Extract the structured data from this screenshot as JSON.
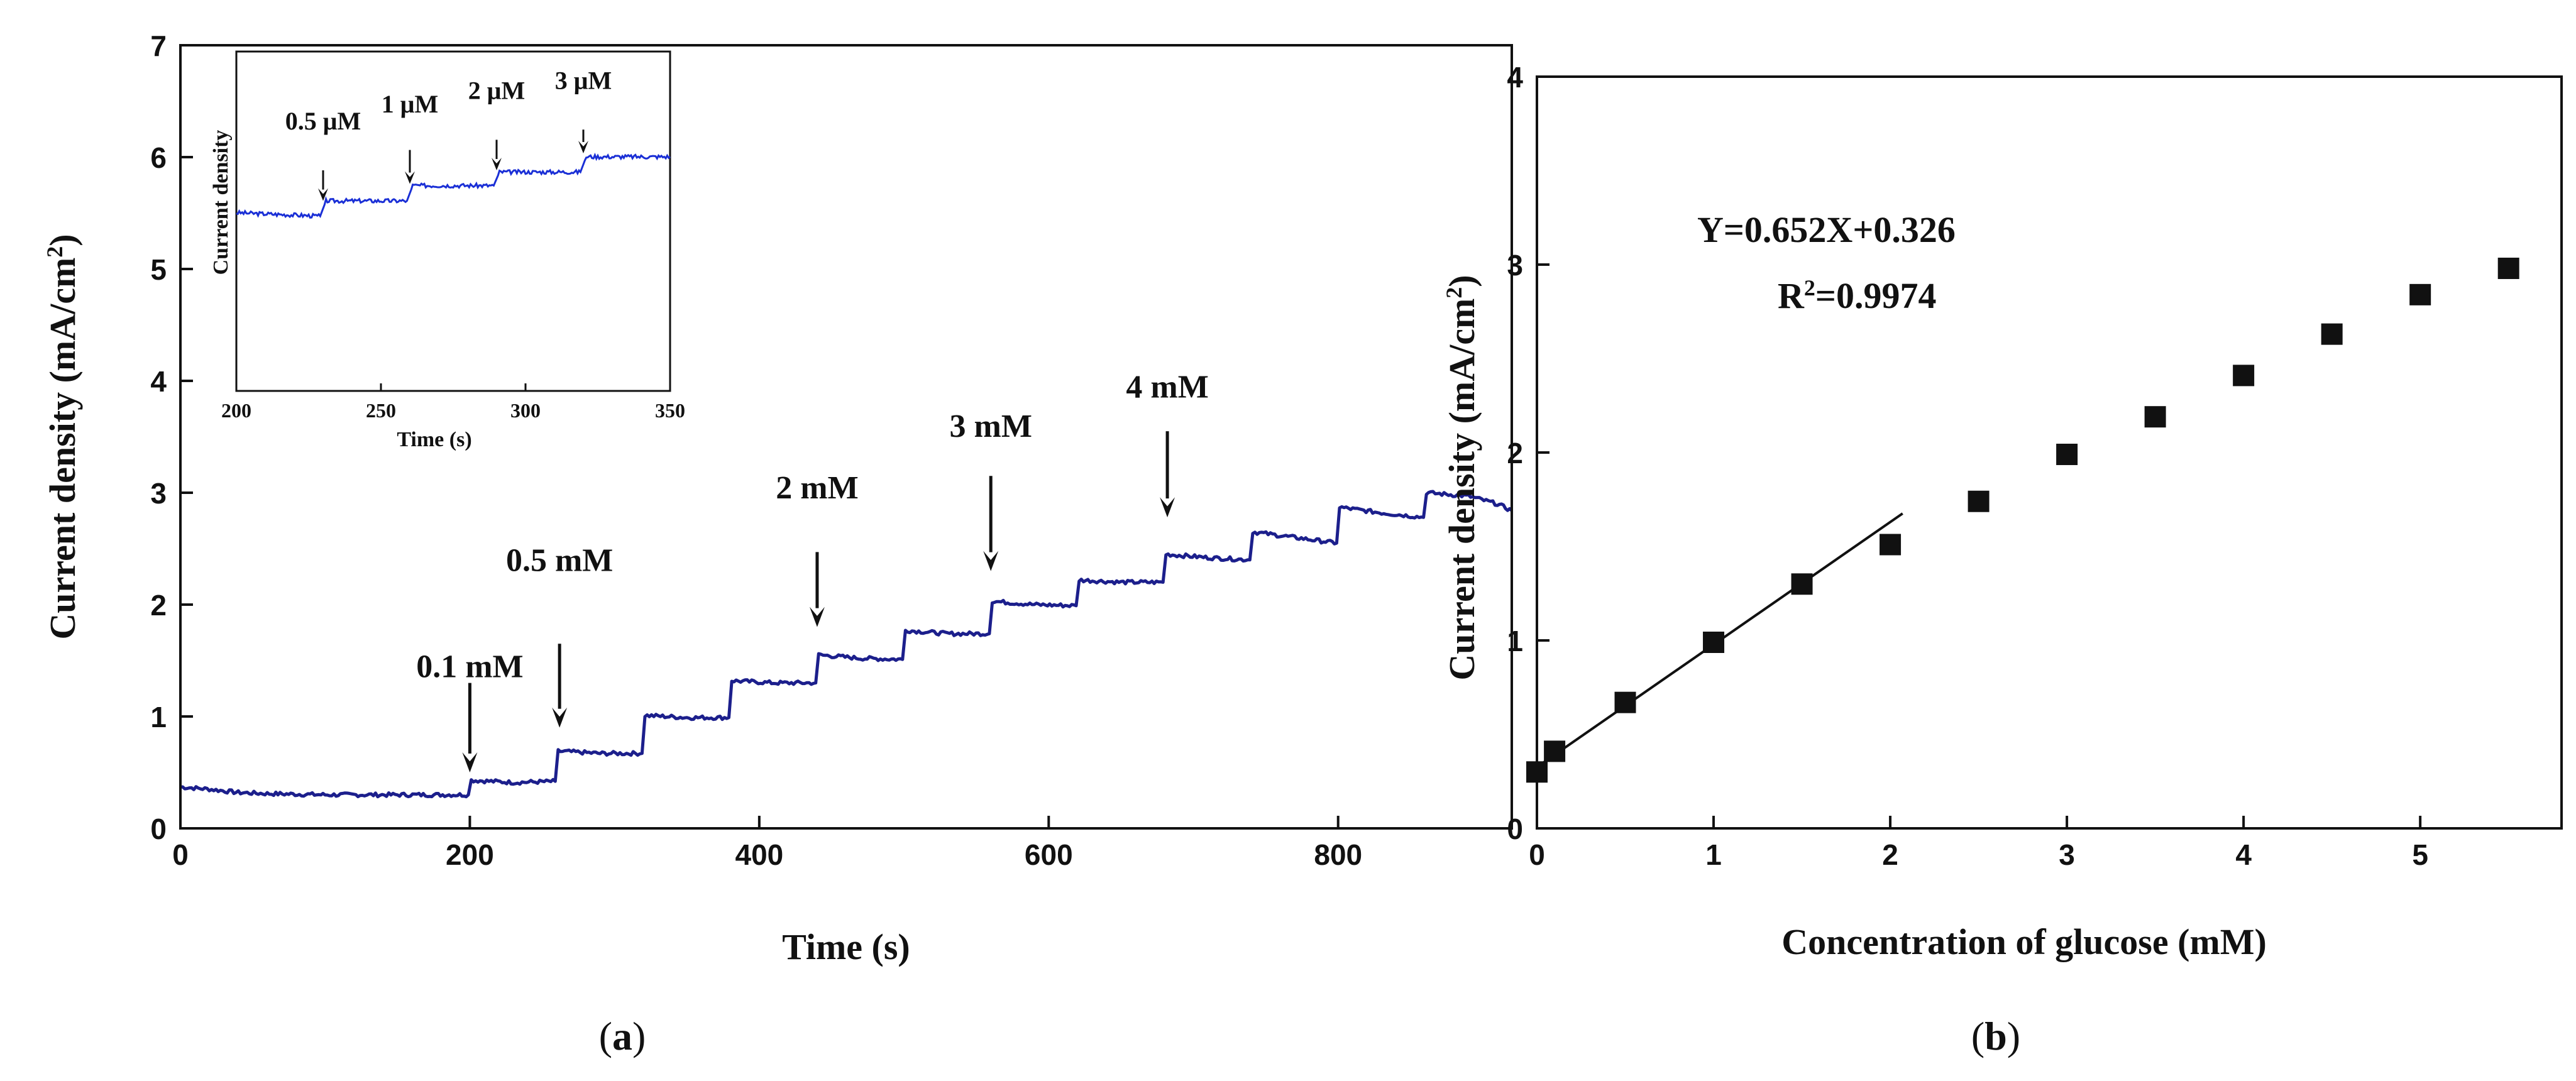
{
  "chart_data": [
    {
      "id": "a",
      "type": "line",
      "panel_label": "a",
      "xlabel": "Time (s)",
      "ylabel": "Current density (mA/cm",
      "ylabel_sup": "2",
      "ylabel_end": ")",
      "xlim": [
        0,
        920
      ],
      "ylim": [
        0,
        7
      ],
      "xticks": [
        0,
        200,
        400,
        600,
        800
      ],
      "yticks": [
        0,
        1,
        2,
        3,
        4,
        5,
        6,
        7
      ],
      "color": "#1c1f8c",
      "series": [
        {
          "name": "amperometric response",
          "x": [
            0,
            20,
            40,
            60,
            100,
            150,
            199,
            201,
            230,
            259,
            261,
            290,
            319,
            321,
            350,
            379,
            381,
            410,
            439,
            441,
            470,
            499,
            501,
            530,
            559,
            561,
            590,
            619,
            621,
            650,
            679,
            681,
            710,
            739,
            741,
            770,
            799,
            801,
            830,
            859,
            861,
            890,
            910,
            920
          ],
          "y": [
            0.37,
            0.35,
            0.32,
            0.31,
            0.3,
            0.3,
            0.3,
            0.43,
            0.41,
            0.42,
            0.69,
            0.67,
            0.67,
            1.01,
            0.99,
            0.99,
            1.32,
            1.3,
            1.3,
            1.55,
            1.52,
            1.51,
            1.77,
            1.74,
            1.74,
            2.03,
            2.0,
            1.99,
            2.22,
            2.2,
            2.2,
            2.45,
            2.42,
            2.4,
            2.65,
            2.6,
            2.55,
            2.87,
            2.82,
            2.78,
            3.0,
            2.97,
            2.9,
            2.84
          ]
        }
      ],
      "annotations": [
        {
          "text": "0.1 mM",
          "x": 200,
          "tip": 0.5,
          "top": 1.3,
          "label_y": 1.35
        },
        {
          "text": "0.5 mM",
          "x": 262,
          "tip": 0.9,
          "top": 1.65,
          "label_y": 2.3
        },
        {
          "text": "2 mM",
          "x": 440,
          "tip": 1.8,
          "top": 2.47,
          "label_y": 2.95
        },
        {
          "text": "3 mM",
          "x": 560,
          "tip": 2.3,
          "top": 3.15,
          "label_y": 3.5
        },
        {
          "text": "4 mM",
          "x": 682,
          "tip": 2.78,
          "top": 3.55,
          "label_y": 3.85
        }
      ],
      "inset": {
        "xlabel": "Time (s)",
        "ylabel": "Current density",
        "xlim": [
          200,
          350
        ],
        "ylim": [
          0,
          1
        ],
        "xticks": [
          200,
          250,
          300,
          350
        ],
        "color": "#1a2fd6",
        "x": [
          200,
          215,
          229,
          231,
          245,
          259,
          261,
          275,
          289,
          291,
          305,
          319,
          321,
          335,
          350
        ],
        "y": [
          0.525,
          0.52,
          0.515,
          0.56,
          0.56,
          0.56,
          0.605,
          0.605,
          0.605,
          0.645,
          0.645,
          0.645,
          0.69,
          0.69,
          0.69
        ],
        "annotations": [
          {
            "text": "0.5 μM",
            "x": 230,
            "tip": 0.56,
            "top": 0.65,
            "label_y": 0.77
          },
          {
            "text": "1 μM",
            "x": 260,
            "tip": 0.61,
            "top": 0.71,
            "label_y": 0.82
          },
          {
            "text": "2 μM",
            "x": 290,
            "tip": 0.65,
            "top": 0.74,
            "label_y": 0.86
          },
          {
            "text": "3 μM",
            "x": 320,
            "tip": 0.7,
            "top": 0.77,
            "label_y": 0.89
          }
        ]
      }
    },
    {
      "id": "b",
      "type": "scatter",
      "panel_label": "b",
      "xlabel": "Concentration of glucose (mM)",
      "ylabel": "Current density (mA/cm",
      "ylabel_sup": "2",
      "ylabel_end": ")",
      "xlim": [
        0,
        5.8
      ],
      "ylim": [
        0,
        4
      ],
      "xticks": [
        0,
        1,
        2,
        3,
        4,
        5
      ],
      "yticks": [
        0,
        1,
        2,
        3,
        4
      ],
      "points": {
        "x": [
          0,
          0.1,
          0.5,
          1.0,
          1.5,
          2.0,
          2.5,
          3.0,
          3.5,
          4.0,
          4.5,
          5.0,
          5.5
        ],
        "y": [
          0.3,
          0.41,
          0.67,
          0.99,
          1.3,
          1.51,
          1.74,
          1.99,
          2.19,
          2.41,
          2.63,
          2.84,
          2.98
        ]
      },
      "fit": {
        "slope": 0.652,
        "intercept": 0.326,
        "x_range": [
          0,
          2.07
        ]
      },
      "equation": "Y=0.652X+0.326",
      "r2_prefix": "R",
      "r2_sup": "2",
      "r2_value": "=0.9974"
    }
  ]
}
